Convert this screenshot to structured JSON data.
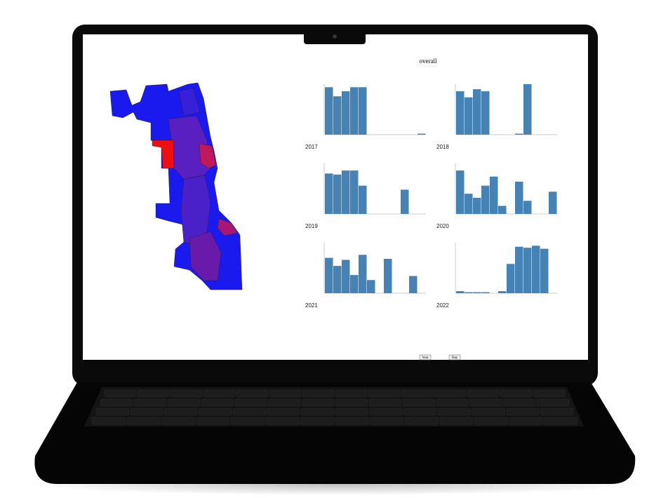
{
  "header": {
    "title": "overall"
  },
  "chart_data": [
    {
      "type": "bar",
      "title": "2017",
      "color": "#4682b4",
      "ylim": [
        0,
        50
      ],
      "values": [
        47,
        38,
        43,
        47,
        47,
        0,
        0,
        0,
        0,
        0,
        0,
        1
      ]
    },
    {
      "type": "bar",
      "title": "2018",
      "color": "#4682b4",
      "ylim": [
        0,
        50
      ],
      "values": [
        43,
        37,
        45,
        43,
        0,
        0,
        0,
        1,
        50,
        0,
        0,
        0
      ]
    },
    {
      "type": "bar",
      "title": "2019",
      "color": "#4682b4",
      "ylim": [
        0,
        50
      ],
      "values": [
        40,
        39,
        43,
        43,
        28,
        0,
        0,
        0,
        0,
        24,
        0,
        0
      ]
    },
    {
      "type": "bar",
      "title": "2020",
      "color": "#4682b4",
      "ylim": [
        0,
        50
      ],
      "values": [
        43,
        20,
        16,
        28,
        37,
        8,
        0,
        32,
        13,
        0,
        0,
        22
      ]
    },
    {
      "type": "bar",
      "title": "2021",
      "color": "#4682b4",
      "ylim": [
        0,
        50
      ],
      "values": [
        35,
        27,
        33,
        18,
        38,
        13,
        0,
        34,
        0,
        0,
        17,
        0
      ]
    },
    {
      "type": "bar",
      "title": "2022",
      "color": "#4682b4",
      "ylim": [
        0,
        50
      ],
      "values": [
        2,
        1,
        1,
        1,
        0,
        2,
        29,
        46,
        45,
        47,
        44,
        0
      ]
    }
  ],
  "controls": {
    "buttons": [
      "Year",
      "Day"
    ]
  }
}
